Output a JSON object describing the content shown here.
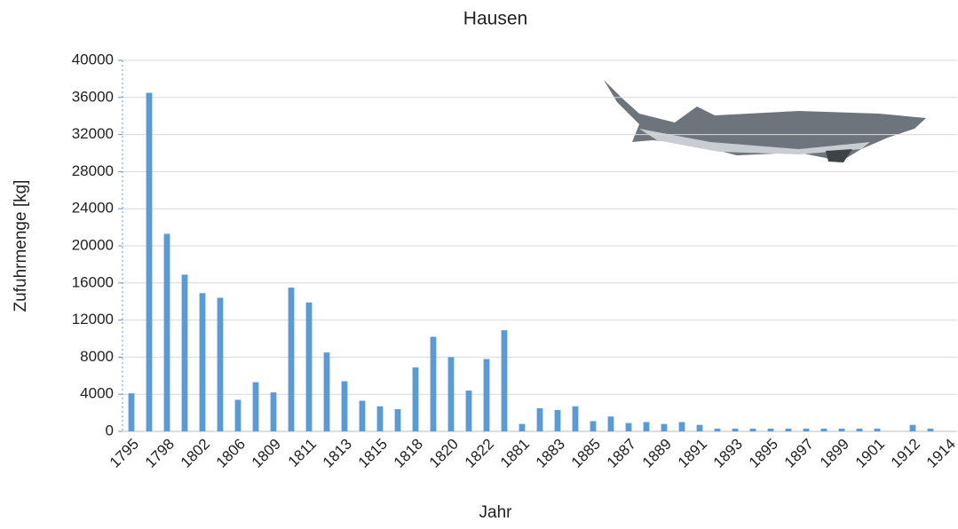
{
  "chart_data": {
    "type": "bar",
    "title": "Hausen",
    "x_label": "Jahr",
    "y_label": "Zufuhrmenge  [kg]",
    "categories": [
      "1795",
      null,
      "1798",
      null,
      "1802",
      null,
      "1806",
      null,
      "1809",
      null,
      "1811",
      null,
      "1813",
      null,
      "1815",
      null,
      "1818",
      null,
      "1820",
      null,
      "1822",
      null,
      "1881",
      null,
      "1883",
      null,
      "1885",
      null,
      "1887",
      null,
      "1889",
      null,
      "1891",
      null,
      "1893",
      null,
      "1895",
      null,
      "1897",
      null,
      "1899",
      null,
      "1901",
      null,
      "1912",
      null,
      "1914"
    ],
    "values": [
      4100,
      36500,
      21300,
      16900,
      14900,
      14400,
      3400,
      5300,
      4200,
      15500,
      13900,
      8500,
      5400,
      3300,
      2700,
      2400,
      6900,
      10200,
      8000,
      4400,
      7800,
      10900,
      800,
      2500,
      2300,
      2700,
      1100,
      1600,
      900,
      1000,
      800,
      1000,
      700,
      300,
      300,
      300,
      300,
      300,
      300,
      300,
      300,
      300,
      300,
      0,
      700,
      300,
      0
    ],
    "color": "#5b9bd5",
    "ylim": [
      0,
      40000
    ],
    "yticks": [
      0,
      4000,
      8000,
      12000,
      16000,
      20000,
      24000,
      28000,
      32000,
      36000,
      40000
    ],
    "grid": true
  }
}
